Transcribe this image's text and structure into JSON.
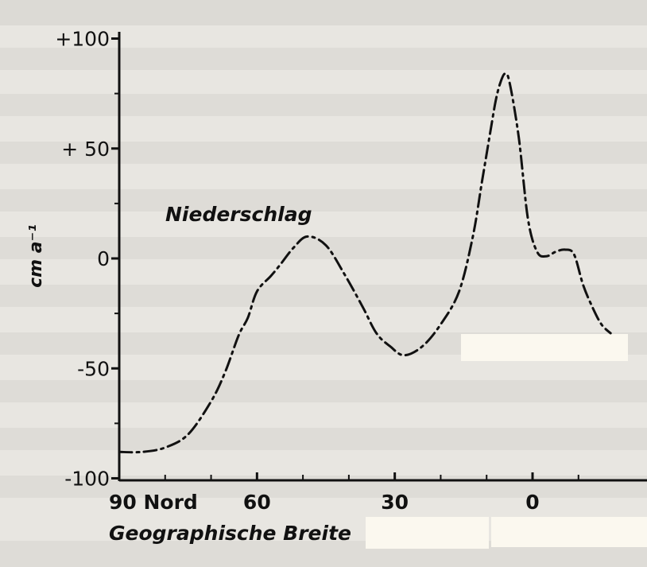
{
  "chart_data": {
    "type": "line",
    "title": "",
    "xlabel": "Geographische Breite",
    "ylabel": "cm a⁻¹",
    "xlim": [
      90,
      -17
    ],
    "ylim": [
      -100,
      100
    ],
    "x_ticks": [
      {
        "value": 90,
        "label": "90 Nord"
      },
      {
        "value": 60,
        "label": "60"
      },
      {
        "value": 30,
        "label": "30"
      },
      {
        "value": 0,
        "label": "0"
      }
    ],
    "y_ticks": [
      {
        "value": 100,
        "label": "+100"
      },
      {
        "value": 50,
        "label": "+ 50"
      },
      {
        "value": 0,
        "label": "0"
      },
      {
        "value": -50,
        "label": "-50"
      },
      {
        "value": -100,
        "label": "-100"
      }
    ],
    "line_style": "dash-dot",
    "series": [
      {
        "name": "Niederschlag",
        "x": [
          90,
          85,
          80,
          75,
          70,
          67,
          64,
          62,
          60,
          57,
          55,
          52,
          49,
          45,
          41,
          37,
          34,
          31,
          28,
          24,
          20,
          16,
          13,
          11,
          9,
          8,
          7,
          6,
          5,
          3,
          1,
          -1,
          -3,
          -5,
          -7,
          -9,
          -11,
          -13,
          -15,
          -17
        ],
        "y": [
          -88,
          -88,
          -86,
          -80,
          -65,
          -52,
          -35,
          -27,
          -15,
          -8,
          -3,
          5,
          10,
          6,
          -7,
          -22,
          -34,
          -40,
          -44,
          -40,
          -30,
          -15,
          10,
          35,
          60,
          72,
          80,
          84,
          80,
          55,
          18,
          3,
          1,
          3,
          4,
          2,
          -12,
          -22,
          -30,
          -34
        ]
      }
    ],
    "grid": false
  }
}
